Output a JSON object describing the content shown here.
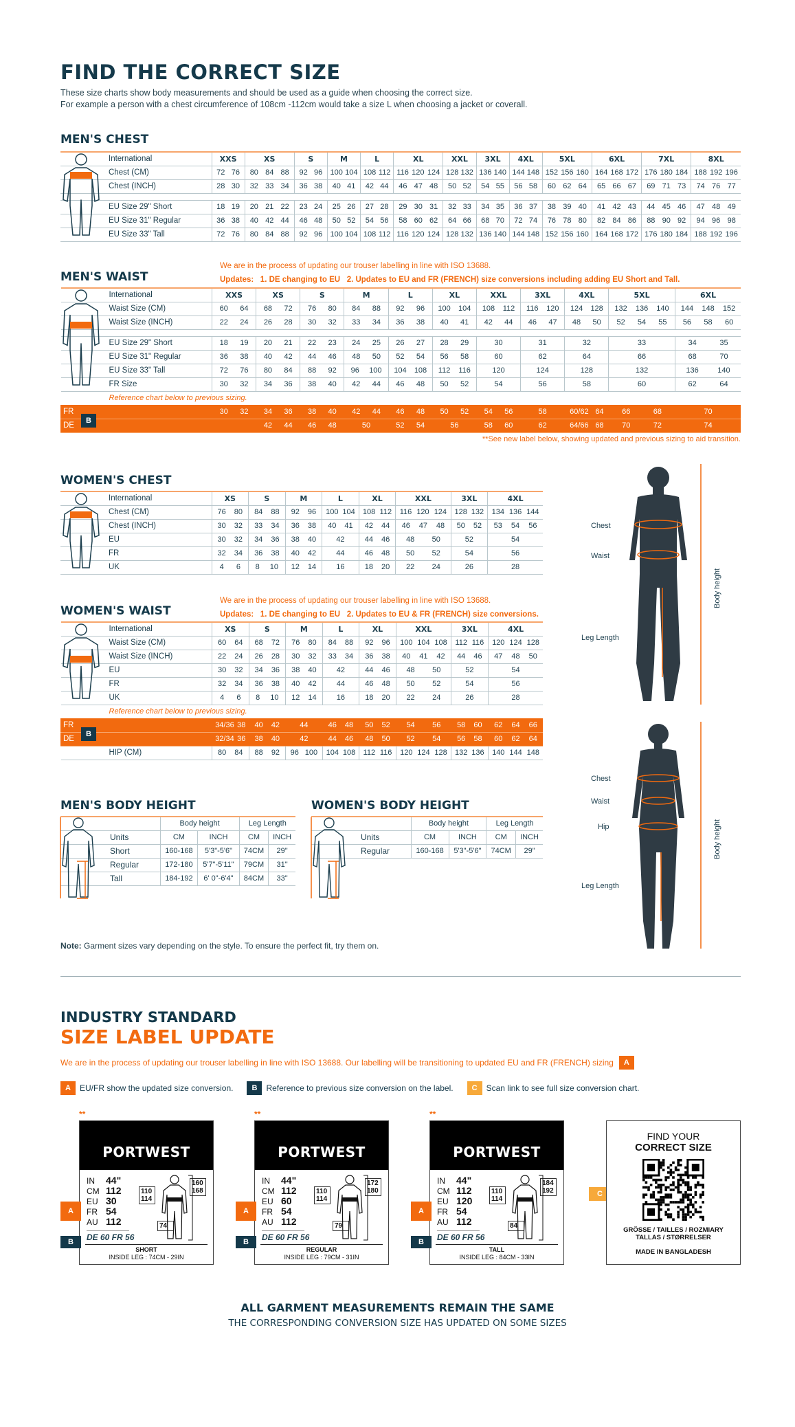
{
  "colors": {
    "brand_dark": "#14394a",
    "accent_orange": "#f26a0f",
    "badge_c": "#f7a93a"
  },
  "header": {
    "title": "FIND THE CORRECT SIZE",
    "line1": "These size charts show body measurements and should be used as a guide when choosing the correct size.",
    "line2": "For example a person with a chest circumference of 108cm -112cm would take a size L when choosing a jacket or coverall."
  },
  "trouser_note": {
    "line1": "We are in the process of updating our trouser labelling in line with ISO 13688.",
    "updates_label": "Updates:",
    "men_item1": "1. DE changing to EU",
    "men_item2": "2. Updates to EU and FR (FRENCH) size conversions including adding EU Short and Tall.",
    "women_item1": "1. DE changing to EU",
    "women_item2": "2. Updates to EU & FR (FRENCH) size conversions."
  },
  "reference_label": "Reference chart below to previous sizing.",
  "men_waist_footnote": "**See new label below, showing updated and previous sizing to aid transition.",
  "men_chest": {
    "title": "MEN'S CHEST",
    "header_label": "International",
    "sizes": [
      "XXS",
      "XS",
      "S",
      "M",
      "L",
      "XL",
      "XXL",
      "3XL",
      "4XL",
      "5XL",
      "6XL",
      "7XL",
      "8XL"
    ],
    "groups": [
      [
        {
          "label": "Chest (CM)",
          "cells": [
            "72 76",
            "80 84 88",
            "92 96",
            "100 104",
            "108 112",
            "116 120 124",
            "128 132",
            "136 140",
            "144 148",
            "152 156 160",
            "164 168 172",
            "176 180 184",
            "188 192 196"
          ]
        },
        {
          "label": "Chest (INCH)",
          "cells": [
            "28 30",
            "32 33 34",
            "36 38",
            "40 41",
            "42 44",
            "46 47 48",
            "50 52",
            "54 55",
            "56 58",
            "60 62 64",
            "65 66 67",
            "69 71 73",
            "74 76 77"
          ]
        }
      ],
      [
        {
          "label": "EU Size 29\" Short",
          "cells": [
            "18 19",
            "20 21 22",
            "23 24",
            "25 26",
            "27 28",
            "29 30 31",
            "32 33",
            "34 35",
            "36 37",
            "38 39 40",
            "41 42 43",
            "44 45 46",
            "47 48 49"
          ]
        },
        {
          "label": "EU Size 31\" Regular",
          "cells": [
            "36 38",
            "40 42 44",
            "46 48",
            "50 52",
            "54 56",
            "58 60 62",
            "64 66",
            "68 70",
            "72 74",
            "76 78 80",
            "82 84 86",
            "88 90 92",
            "94 96 98"
          ]
        },
        {
          "label": "EU Size 33\" Tall",
          "cells": [
            "72 76",
            "80 84 88",
            "92 96",
            "100 104",
            "108 112",
            "116 120 124",
            "128 132",
            "136 140",
            "144 148",
            "152 156 160",
            "164 168 172",
            "176 180 184",
            "188 192 196"
          ]
        }
      ]
    ]
  },
  "men_waist": {
    "title": "MEN'S WAIST",
    "header_label": "International",
    "sizes": [
      "XXS",
      "XS",
      "S",
      "M",
      "L",
      "XL",
      "XXL",
      "3XL",
      "4XL",
      "5XL",
      "6XL"
    ],
    "groups": [
      [
        {
          "label": "Waist Size (CM)",
          "cells": [
            "60 64",
            "68 72",
            "76 80",
            "84 88",
            "92 96",
            "100 104",
            "108 112",
            "116 120",
            "124 128",
            "132 136 140",
            "144 148 152"
          ]
        },
        {
          "label": "Waist Size (INCH)",
          "cells": [
            "22 24",
            "26 28",
            "30 32",
            "33 34",
            "36 38",
            "40 41",
            "42 44",
            "46 47",
            "48 50",
            "52 54 55",
            "56 58 60"
          ]
        }
      ],
      [
        {
          "label": "EU Size 29\" Short",
          "cells": [
            "18 19",
            "20 21",
            "22 23",
            "24 25",
            "26 27",
            "28 29",
            "30",
            "31",
            "32",
            "33",
            "34 35"
          ]
        },
        {
          "label": "EU Size 31\" Regular",
          "cells": [
            "36 38",
            "40 42",
            "44 46",
            "48 50",
            "52 54",
            "56 58",
            "60",
            "62",
            "64",
            "66",
            "68 70"
          ]
        },
        {
          "label": "EU Size 33\" Tall",
          "cells": [
            "72 76",
            "80 84",
            "88 92",
            "96 100",
            "104 108",
            "112 116",
            "120",
            "124",
            "128",
            "132",
            "136 140"
          ]
        },
        {
          "label": "FR Size",
          "cells": [
            "30 32",
            "34 36",
            "38 40",
            "42 44",
            "46 48",
            "50 52",
            "54",
            "56",
            "58",
            "60",
            "62 64"
          ]
        }
      ]
    ],
    "reference_badge": "B",
    "reference_rows": [
      {
        "label": "FR",
        "cells": [
          "30 32",
          "34 36",
          "38 40",
          "42 44",
          "46 48",
          "50 52",
          "54 56",
          "58",
          "60/62 64",
          "66 68",
          "70"
        ]
      },
      {
        "label": "DE",
        "cells": [
          "",
          "42 44",
          "46 48",
          "50",
          "52 54",
          "56",
          "58 60",
          "62",
          "64/66 68",
          "70 72",
          "74"
        ]
      }
    ]
  },
  "women_chest": {
    "title": "WOMEN'S CHEST",
    "header_label": "International",
    "sizes": [
      "XS",
      "S",
      "M",
      "L",
      "XL",
      "XXL",
      "3XL",
      "4XL"
    ],
    "groups": [
      [
        {
          "label": "Chest (CM)",
          "cells": [
            "76 80",
            "84 88",
            "92 96",
            "100 104",
            "108 112",
            "116 120 124",
            "128 132",
            "134 136 144"
          ]
        },
        {
          "label": "Chest (INCH)",
          "cells": [
            "30 32",
            "33 34",
            "36 38",
            "40 41",
            "42 44",
            "46 47 48",
            "50 52",
            "53 54 56"
          ]
        },
        {
          "label": "EU",
          "cells": [
            "30 32",
            "34 36",
            "38 40",
            "42",
            "44 46",
            "48 50",
            "52",
            "54"
          ]
        },
        {
          "label": "FR",
          "cells": [
            "32 34",
            "36 38",
            "40 42",
            "44",
            "46 48",
            "50 52",
            "54",
            "56"
          ]
        },
        {
          "label": "UK",
          "cells": [
            "4 6",
            "8 10",
            "12 14",
            "16",
            "18 20",
            "22 24",
            "26",
            "28"
          ]
        }
      ]
    ]
  },
  "women_waist": {
    "title": "WOMEN'S WAIST",
    "header_label": "International",
    "sizes": [
      "XS",
      "S",
      "M",
      "L",
      "XL",
      "XXL",
      "3XL",
      "4XL"
    ],
    "groups": [
      [
        {
          "label": "Waist Size (CM)",
          "cells": [
            "60 64",
            "68 72",
            "76 80",
            "84 88",
            "92 96",
            "100 104 108",
            "112 116",
            "120 124 128"
          ]
        },
        {
          "label": "Waist Size (INCH)",
          "cells": [
            "22 24",
            "26 28",
            "30 32",
            "33 34",
            "36 38",
            "40 41 42",
            "44 46",
            "47 48 50"
          ]
        },
        {
          "label": "EU",
          "cells": [
            "30 32",
            "34 36",
            "38 40",
            "42",
            "44 46",
            "48 50",
            "52",
            "54"
          ]
        },
        {
          "label": "FR",
          "cells": [
            "32 34",
            "36 38",
            "40 42",
            "44",
            "46 48",
            "50 52",
            "54",
            "56"
          ]
        },
        {
          "label": "UK",
          "cells": [
            "4 6",
            "8 10",
            "12 14",
            "16",
            "18 20",
            "22 24",
            "26",
            "28"
          ]
        }
      ]
    ],
    "reference_badge": "B",
    "reference_rows": [
      {
        "label": "FR",
        "cells": [
          "34/36 38",
          "40 42",
          "44",
          "46 48",
          "50 52",
          "54 56",
          "58 60",
          "62 64 66"
        ]
      },
      {
        "label": "DE",
        "cells": [
          "32/34 36",
          "38 40",
          "42",
          "44 46",
          "48 50",
          "52 54",
          "56 58",
          "60 62 64"
        ]
      }
    ],
    "hip_row": {
      "label": "HIP (CM)",
      "cells": [
        "80 84",
        "88 92",
        "96 100",
        "104 108",
        "112 116",
        "120 124 128",
        "132 136",
        "140 144 148"
      ]
    }
  },
  "men_body_height": {
    "title": "MEN'S BODY HEIGHT",
    "col_groups": [
      "Body height",
      "Leg Length"
    ],
    "units_label": "Units",
    "units": [
      "CM",
      "INCH",
      "CM",
      "INCH"
    ],
    "rows": [
      {
        "label": "Short",
        "cells": [
          "160-168",
          "5'3\"-5'6\"",
          "74CM",
          "29\""
        ]
      },
      {
        "label": "Regular",
        "cells": [
          "172-180",
          "5'7\"-5'11\"",
          "79CM",
          "31\""
        ]
      },
      {
        "label": "Tall",
        "cells": [
          "184-192",
          "6' 0\"-6'4\"",
          "84CM",
          "33\""
        ]
      }
    ]
  },
  "women_body_height": {
    "title": "WOMEN'S BODY HEIGHT",
    "col_groups": [
      "Body height",
      "Leg Length"
    ],
    "units_label": "Units",
    "units": [
      "CM",
      "INCH",
      "CM",
      "INCH"
    ],
    "rows": [
      {
        "label": "Regular",
        "cells": [
          "160-168",
          "5'3\"-5'6\"",
          "74CM",
          "29\""
        ]
      }
    ]
  },
  "photos": {
    "man": {
      "chest": "Chest",
      "waist": "Waist",
      "leg": "Leg Length",
      "height": "Body height"
    },
    "woman": {
      "chest": "Chest",
      "waist": "Waist",
      "hip": "Hip",
      "leg": "Leg Length",
      "height": "Body height"
    }
  },
  "note": {
    "bold": "Note:",
    "text": " Garment sizes vary depending on the style. To ensure the perfect fit, try them on."
  },
  "label_update": {
    "title1": "INDUSTRY STANDARD",
    "title2": "SIZE LABEL UPDATE",
    "intro": "We are in the process of updating our trouser labelling in line with ISO 13688. Our labelling will be transitioning to updated EU and FR (FRENCH) sizing",
    "intro_badge": "A",
    "legend": [
      {
        "badge": "A",
        "text": "EU/FR show the updated size conversion."
      },
      {
        "badge": "B",
        "text": "Reference to previous size conversion on the label."
      },
      {
        "badge": "C",
        "text": "Scan link to see full size conversion chart."
      }
    ],
    "labels": [
      {
        "mark": "**",
        "brand": "PORTWEST",
        "in": "44\"",
        "cm": "112",
        "eu": "30",
        "fr": "54",
        "au": "112",
        "de_old": "DE 60 FR 56",
        "waist": "110 114",
        "height": "160 168",
        "leg": "74",
        "fit": "SHORT",
        "inside_leg": "INSIDE LEG : 74CM - 29IN"
      },
      {
        "mark": "**",
        "brand": "PORTWEST",
        "in": "44\"",
        "cm": "112",
        "eu": "60",
        "fr": "54",
        "au": "112",
        "de_old": "DE 60 FR 56",
        "waist": "110 114",
        "height": "172 180",
        "leg": "79",
        "fit": "REGULAR",
        "inside_leg": "INSIDE LEG : 79CM - 31IN"
      },
      {
        "mark": "**",
        "brand": "PORTWEST",
        "in": "44\"",
        "cm": "112",
        "eu": "120",
        "fr": "54",
        "au": "112",
        "de_old": "DE 60 FR 56",
        "waist": "110 114",
        "height": "184 192",
        "leg": "84",
        "fit": "TALL",
        "inside_leg": "INSIDE LEG : 84CM - 33IN"
      }
    ],
    "row_keys": {
      "in": "IN",
      "cm": "CM",
      "eu": "EU",
      "fr": "FR",
      "au": "AU"
    },
    "qr_card": {
      "find": "FIND YOUR",
      "correct": "CORRECT SIZE",
      "langs1": "GRÖSSE / TAILLES / ROZMIARY",
      "langs2": "TALLAS  / STØRRELSER",
      "made_in": "MADE IN BANGLADESH",
      "badge": "C"
    }
  },
  "footer": {
    "line1": "ALL GARMENT MEASUREMENTS REMAIN THE SAME",
    "line2": "THE CORRESPONDING CONVERSION SIZE HAS UPDATED ON SOME SIZES"
  }
}
